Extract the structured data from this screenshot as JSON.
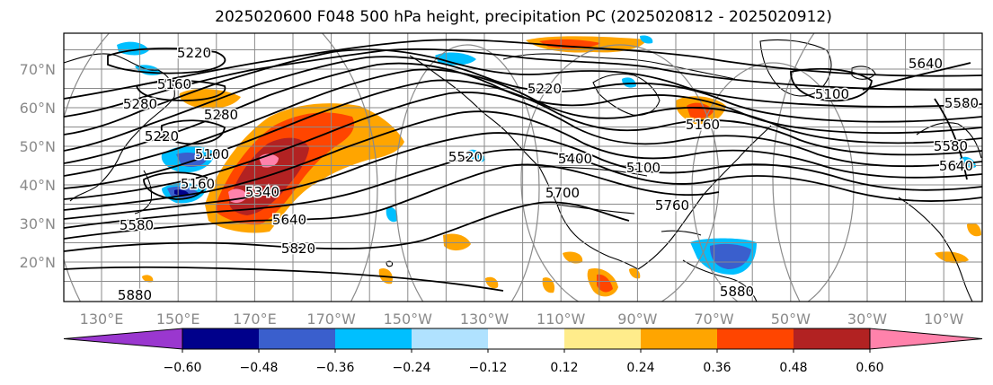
{
  "title": "2025020600 F048 500 hPa height, precipitation PC (2025020812 - 2025020912)",
  "map": {
    "projection": "cylindrical",
    "lon_ticks": [
      "130°E",
      "150°E",
      "170°E",
      "170°W",
      "150°W",
      "130°W",
      "110°W",
      "90°W",
      "70°W",
      "50°W",
      "30°W",
      "10°W"
    ],
    "lat_ticks": [
      "70°N",
      "60°N",
      "50°N",
      "40°N",
      "30°N",
      "20°N"
    ],
    "grid": true
  },
  "contour_labels": [
    "5220",
    "5160",
    "5280",
    "5220",
    "5280",
    "5100",
    "5160",
    "5340",
    "5580",
    "5640",
    "5820",
    "5880",
    "5220",
    "5100",
    "5400",
    "5700",
    "5760",
    "5880",
    "5520",
    "5580",
    "5640",
    "5100",
    "5160",
    "5580",
    "5640"
  ],
  "colorbar": {
    "ticks": [
      "−0.60",
      "−0.48",
      "−0.36",
      "−0.24",
      "−0.12",
      "0.12",
      "0.24",
      "0.36",
      "0.48",
      "0.60"
    ],
    "colors": {
      "lt_m060": "#9a37cf",
      "m060_m048": "#00008b",
      "m048_m036": "#3a5fcd",
      "m036_m024": "#00bfff",
      "m024_m012": "#b0e2ff",
      "m012_012": "#ffffff",
      "p012_024": "#ffec8b",
      "p024_036": "#ffa500",
      "p036_048": "#ff4500",
      "p048_060": "#b22222",
      "gt_060": "#ff82ab"
    }
  }
}
